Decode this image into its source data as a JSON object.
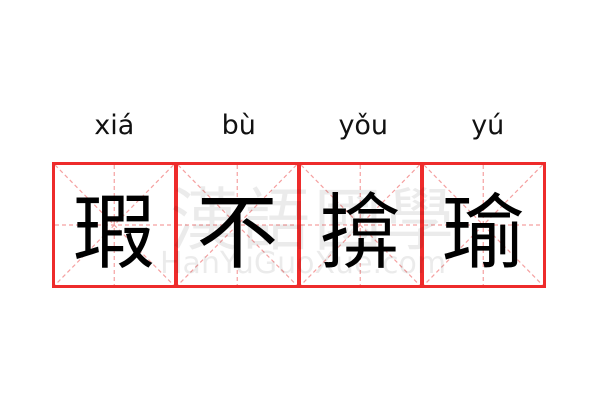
{
  "entries": [
    {
      "pinyin": "xiá",
      "char": "瑕"
    },
    {
      "pinyin": "bù",
      "char": "不"
    },
    {
      "pinyin": "yǒu",
      "char": "揜"
    },
    {
      "pinyin": "yú",
      "char": "瑜"
    }
  ],
  "watermark": {
    "chinese": "漢語國學",
    "latin": "HanYuGuoXue.com"
  },
  "colors": {
    "border": "#ee2b2b",
    "guide": "#f5a0a0",
    "text": "#000000"
  }
}
